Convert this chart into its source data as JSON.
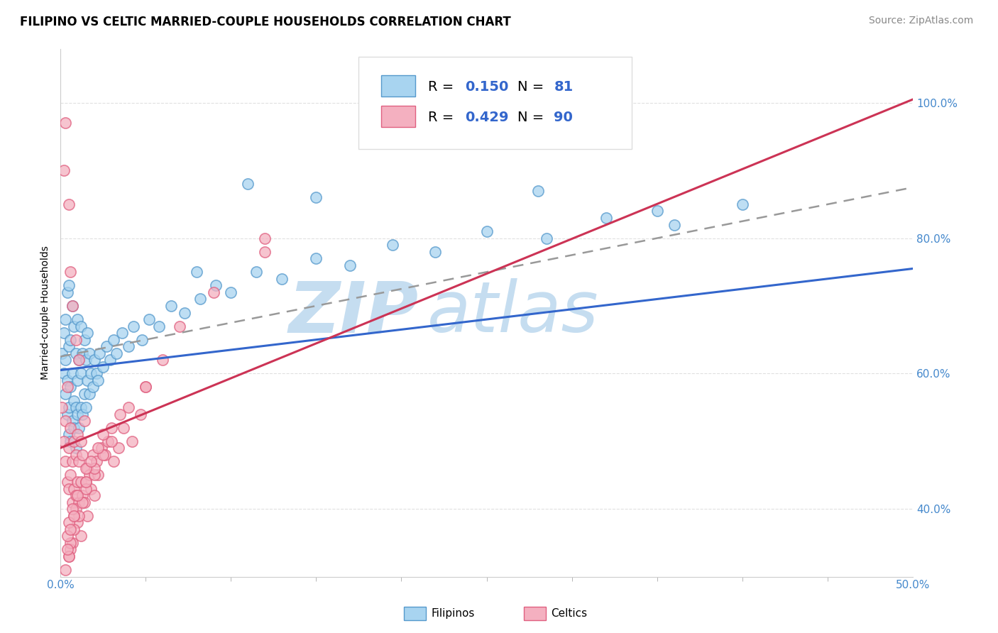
{
  "title": "FILIPINO VS CELTIC MARRIED-COUPLE HOUSEHOLDS CORRELATION CHART",
  "source_text": "Source: ZipAtlas.com",
  "ylabel": "Married-couple Households",
  "right_yticks": [
    "40.0%",
    "60.0%",
    "80.0%",
    "100.0%"
  ],
  "right_ytick_vals": [
    0.4,
    0.6,
    0.8,
    1.0
  ],
  "filipino_color": "#a8d4f0",
  "celtic_color": "#f4b0c0",
  "filipino_edge_color": "#5599cc",
  "celtic_edge_color": "#e06080",
  "trend_blue": "#3366cc",
  "trend_pink": "#cc3355",
  "trend_gray": "#999999",
  "watermark_zip": "ZIP",
  "watermark_atlas": "atlas",
  "watermark_color": "#c5ddf0",
  "r_filipino": "0.150",
  "r_celtic": "0.429",
  "n_filipino": "81",
  "n_celtic": "90",
  "xmin": 0.0,
  "xmax": 0.5,
  "ymin": 0.3,
  "ymax": 1.08,
  "background_color": "#ffffff",
  "grid_color": "#e0e0e0",
  "title_fontsize": 12,
  "tick_fontsize": 11,
  "legend_fontsize": 14,
  "source_fontsize": 10,
  "ylabel_fontsize": 10,
  "filipino_x": [
    0.001,
    0.002,
    0.002,
    0.003,
    0.003,
    0.003,
    0.004,
    0.004,
    0.004,
    0.005,
    0.005,
    0.005,
    0.005,
    0.006,
    0.006,
    0.006,
    0.007,
    0.007,
    0.007,
    0.008,
    0.008,
    0.008,
    0.009,
    0.009,
    0.009,
    0.01,
    0.01,
    0.01,
    0.011,
    0.011,
    0.012,
    0.012,
    0.012,
    0.013,
    0.013,
    0.014,
    0.014,
    0.015,
    0.015,
    0.016,
    0.016,
    0.017,
    0.017,
    0.018,
    0.019,
    0.02,
    0.021,
    0.022,
    0.023,
    0.025,
    0.027,
    0.029,
    0.031,
    0.033,
    0.036,
    0.04,
    0.043,
    0.048,
    0.052,
    0.058,
    0.065,
    0.073,
    0.082,
    0.091,
    0.1,
    0.115,
    0.13,
    0.15,
    0.17,
    0.195,
    0.22,
    0.25,
    0.285,
    0.32,
    0.36,
    0.4,
    0.35,
    0.28,
    0.15,
    0.11,
    0.08
  ],
  "filipino_y": [
    0.63,
    0.6,
    0.66,
    0.57,
    0.62,
    0.68,
    0.54,
    0.59,
    0.72,
    0.51,
    0.55,
    0.64,
    0.73,
    0.5,
    0.58,
    0.65,
    0.53,
    0.6,
    0.7,
    0.52,
    0.56,
    0.67,
    0.49,
    0.55,
    0.63,
    0.54,
    0.59,
    0.68,
    0.52,
    0.62,
    0.55,
    0.6,
    0.67,
    0.54,
    0.63,
    0.57,
    0.65,
    0.55,
    0.62,
    0.59,
    0.66,
    0.57,
    0.63,
    0.6,
    0.58,
    0.62,
    0.6,
    0.59,
    0.63,
    0.61,
    0.64,
    0.62,
    0.65,
    0.63,
    0.66,
    0.64,
    0.67,
    0.65,
    0.68,
    0.67,
    0.7,
    0.69,
    0.71,
    0.73,
    0.72,
    0.75,
    0.74,
    0.77,
    0.76,
    0.79,
    0.78,
    0.81,
    0.8,
    0.83,
    0.82,
    0.85,
    0.84,
    0.87,
    0.86,
    0.88,
    0.75
  ],
  "celtic_x": [
    0.001,
    0.002,
    0.002,
    0.003,
    0.003,
    0.003,
    0.004,
    0.004,
    0.005,
    0.005,
    0.005,
    0.006,
    0.006,
    0.006,
    0.007,
    0.007,
    0.007,
    0.008,
    0.008,
    0.009,
    0.009,
    0.009,
    0.01,
    0.01,
    0.011,
    0.011,
    0.011,
    0.012,
    0.012,
    0.013,
    0.013,
    0.014,
    0.014,
    0.015,
    0.016,
    0.016,
    0.017,
    0.018,
    0.019,
    0.02,
    0.021,
    0.022,
    0.024,
    0.026,
    0.028,
    0.031,
    0.034,
    0.037,
    0.042,
    0.047,
    0.01,
    0.012,
    0.008,
    0.007,
    0.006,
    0.005,
    0.009,
    0.011,
    0.013,
    0.015,
    0.02,
    0.025,
    0.03,
    0.04,
    0.05,
    0.03,
    0.02,
    0.015,
    0.01,
    0.008,
    0.006,
    0.005,
    0.004,
    0.003,
    0.004,
    0.005,
    0.006,
    0.007,
    0.008,
    0.05,
    0.06,
    0.07,
    0.09,
    0.12,
    0.015,
    0.022,
    0.018,
    0.025,
    0.035,
    0.12
  ],
  "celtic_y": [
    0.55,
    0.9,
    0.5,
    0.47,
    0.53,
    0.97,
    0.44,
    0.58,
    0.43,
    0.49,
    0.85,
    0.45,
    0.52,
    0.75,
    0.41,
    0.47,
    0.7,
    0.43,
    0.5,
    0.42,
    0.48,
    0.65,
    0.44,
    0.51,
    0.41,
    0.47,
    0.62,
    0.44,
    0.5,
    0.42,
    0.48,
    0.41,
    0.53,
    0.44,
    0.39,
    0.46,
    0.45,
    0.43,
    0.48,
    0.42,
    0.47,
    0.45,
    0.49,
    0.48,
    0.5,
    0.47,
    0.49,
    0.52,
    0.5,
    0.54,
    0.38,
    0.36,
    0.37,
    0.35,
    0.34,
    0.33,
    0.4,
    0.39,
    0.41,
    0.43,
    0.45,
    0.48,
    0.52,
    0.55,
    0.58,
    0.5,
    0.46,
    0.44,
    0.42,
    0.39,
    0.35,
    0.33,
    0.34,
    0.31,
    0.36,
    0.38,
    0.37,
    0.4,
    0.39,
    0.58,
    0.62,
    0.67,
    0.72,
    0.78,
    0.46,
    0.49,
    0.47,
    0.51,
    0.54,
    0.8
  ],
  "fil_trend_x0": 0.0,
  "fil_trend_x1": 0.5,
  "fil_trend_y0": 0.605,
  "fil_trend_y1": 0.755,
  "cel_trend_x0": 0.0,
  "cel_trend_x1": 0.5,
  "cel_trend_y0": 0.49,
  "cel_trend_y1": 1.005,
  "gray_trend_x0": 0.0,
  "gray_trend_x1": 0.5,
  "gray_trend_y0": 0.625,
  "gray_trend_y1": 0.875
}
